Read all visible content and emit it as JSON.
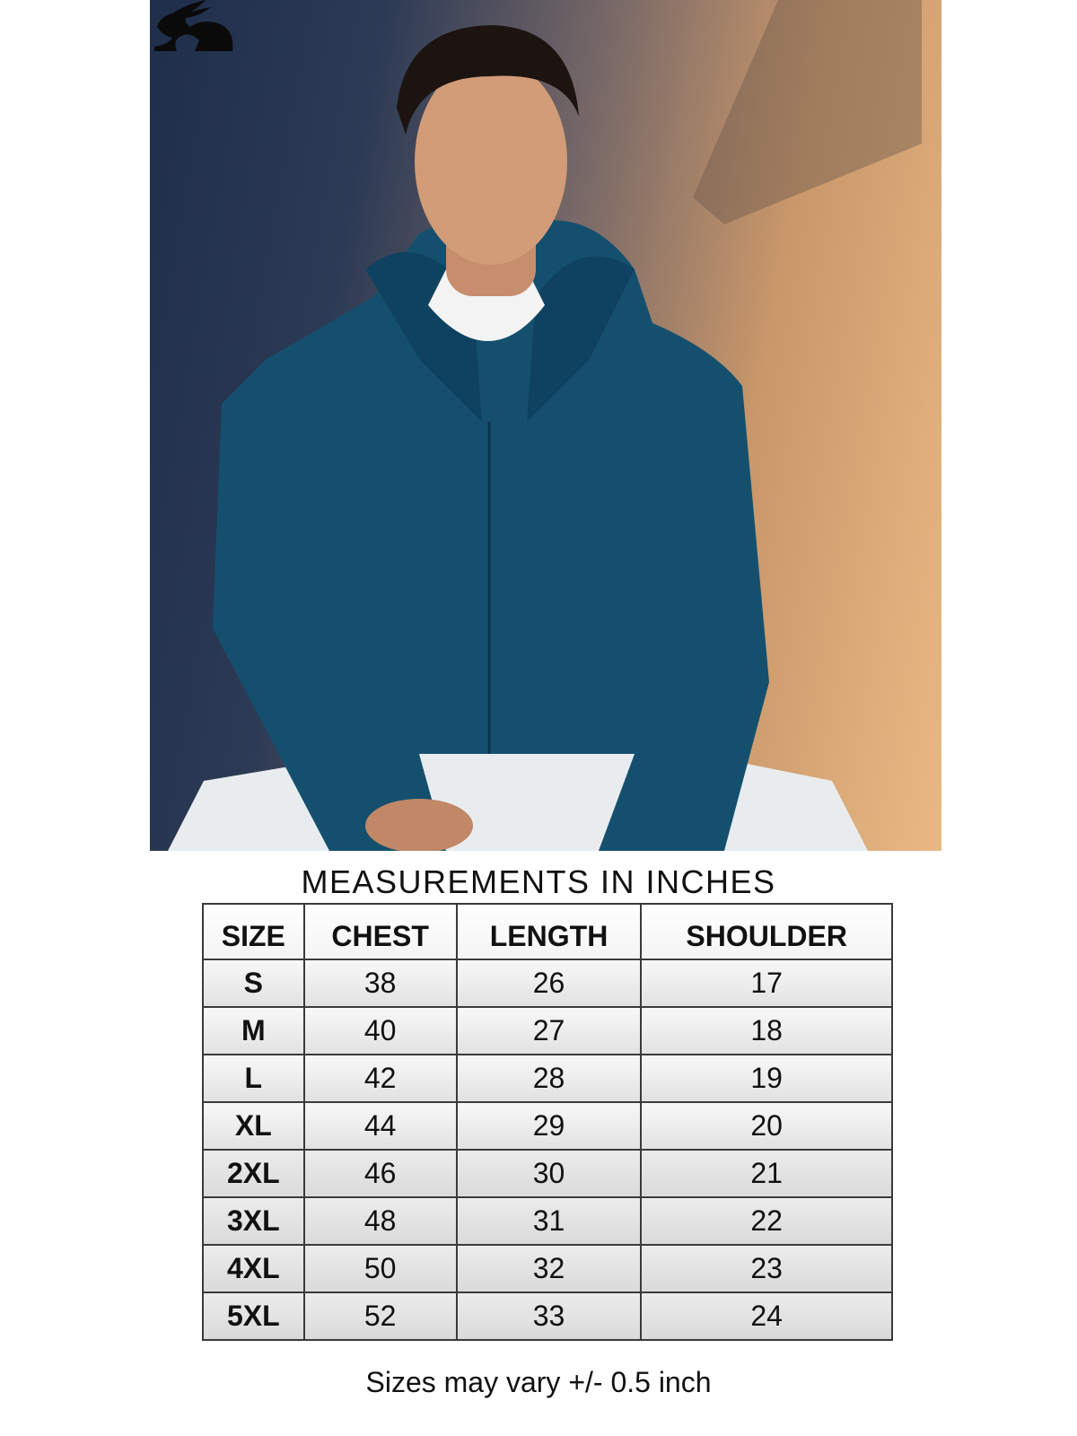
{
  "brand": {
    "logo": "rabbit-logo"
  },
  "photo": {
    "subject": "model-in-navy-zip-hoodie"
  },
  "title": "MEASUREMENTS IN INCHES",
  "table": {
    "headers": [
      "SIZE",
      "CHEST",
      "LENGTH",
      "SHOULDER"
    ],
    "rows": [
      [
        "S",
        "38",
        "26",
        "17"
      ],
      [
        "M",
        "40",
        "27",
        "18"
      ],
      [
        "L",
        "42",
        "28",
        "19"
      ],
      [
        "XL",
        "44",
        "29",
        "20"
      ],
      [
        "2XL",
        "46",
        "30",
        "21"
      ],
      [
        "3XL",
        "48",
        "31",
        "22"
      ],
      [
        "4XL",
        "50",
        "32",
        "23"
      ],
      [
        "5XL",
        "52",
        "33",
        "24"
      ]
    ]
  },
  "note": "Sizes may vary +/- 0.5 inch",
  "colors": {
    "hoodie": "#14506e",
    "text": "#111111",
    "border": "#333333"
  }
}
